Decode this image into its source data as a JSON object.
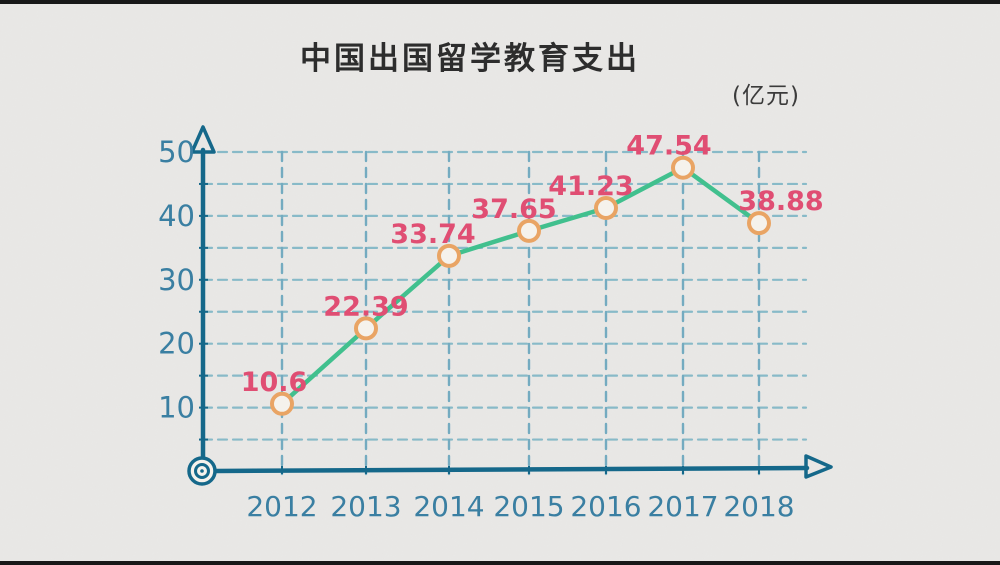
{
  "frame": {
    "letterbox_color": "#181818",
    "background_color": "#e9e8e6"
  },
  "chart_data": {
    "type": "line",
    "title": "中国出国留学教育支出",
    "unit_label": "(亿元)",
    "categories": [
      "2012",
      "2013",
      "2014",
      "2015",
      "2016",
      "2017",
      "2018"
    ],
    "values": [
      10.6,
      22.39,
      33.74,
      37.65,
      41.23,
      47.54,
      38.88
    ],
    "value_labels": [
      "10.6",
      "22.39",
      "33.74",
      "37.65",
      "41.23",
      "47.54",
      "38.88"
    ],
    "xlabel": "",
    "ylabel": "",
    "ylim": [
      0,
      50
    ],
    "y_ticks": [
      10,
      20,
      30,
      40,
      50
    ],
    "y_grid_step": 5,
    "grid": "dashed hand-drawn grid, horizontal every 5 units, vertical at each year",
    "legend": "none",
    "style": {
      "axis_color": "#15688a",
      "tick_label_color": "#3a7fa2",
      "grid_h_color": "#88bac8",
      "grid_v_color": "#74abc0",
      "line_color": "#41c08e",
      "marker_stroke_color": "#e9a464",
      "marker_fill_color": "#f5f2ec",
      "value_label_color": "#e04e73",
      "title_color": "#2d2d2d",
      "unit_color": "#3b3b3b"
    }
  }
}
